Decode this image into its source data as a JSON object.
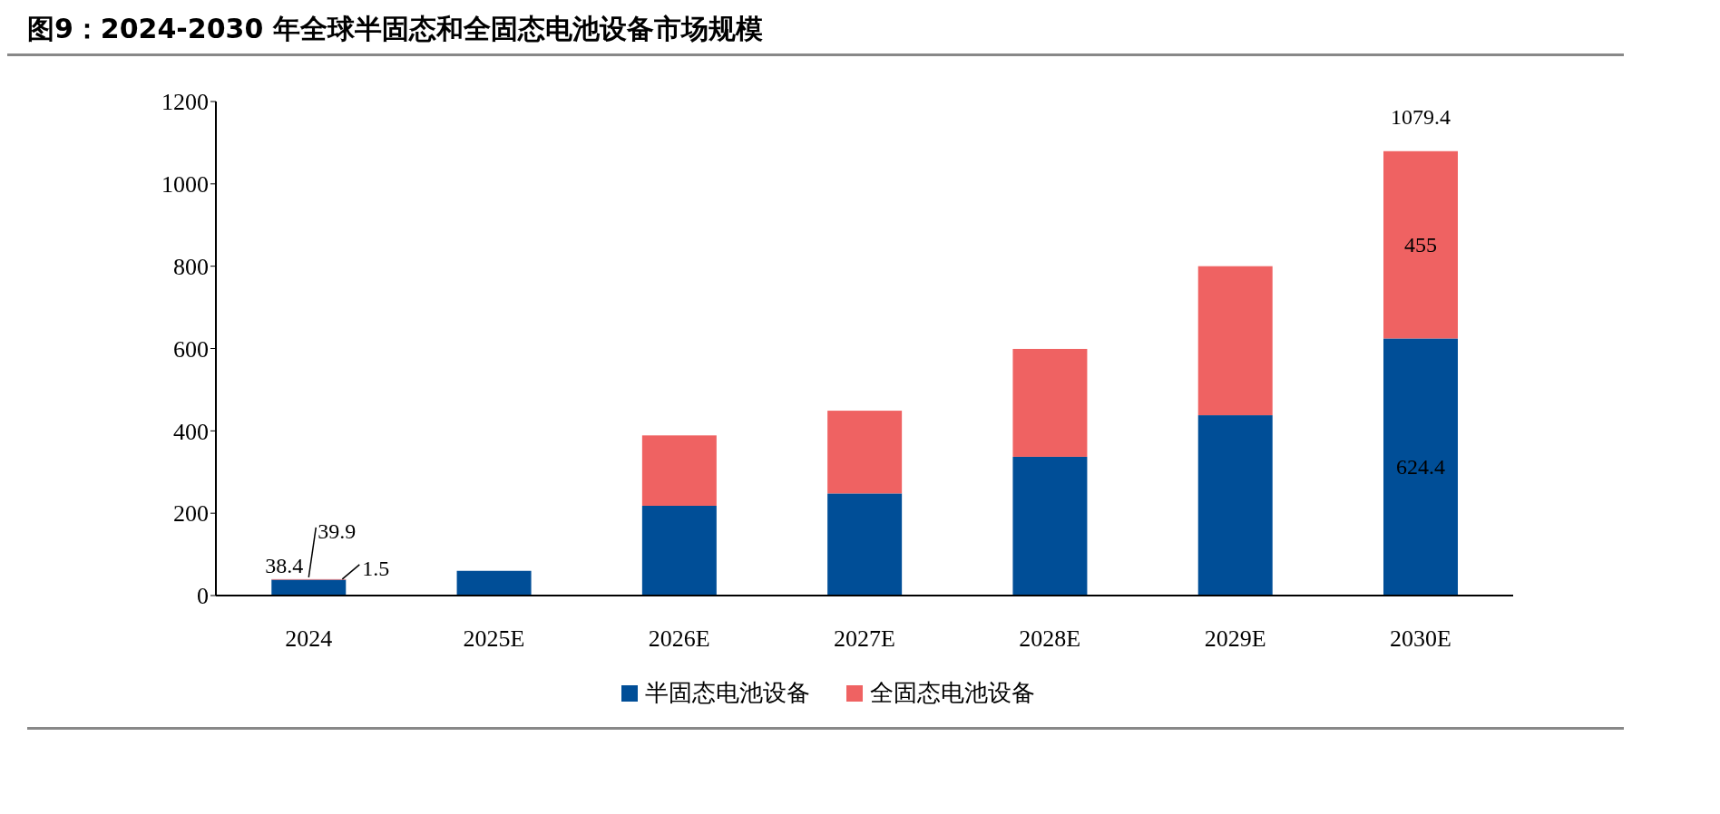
{
  "chart_data": {
    "type": "bar",
    "title": "图9：2024-2030 年全球半固态和全固态电池设备市场规模",
    "categories": [
      "2024",
      "2025E",
      "2026E",
      "2027E",
      "2028E",
      "2029E",
      "2030E"
    ],
    "stacked": true,
    "series": [
      {
        "name": "半固态电池设备",
        "color": "#004e97",
        "values": [
          38.4,
          60,
          218,
          248,
          337,
          438,
          624.4
        ],
        "value_labels": [
          "38.4",
          null,
          null,
          null,
          null,
          null,
          "624.4"
        ]
      },
      {
        "name": "全固态电池设备",
        "color": "#ef6262",
        "values": [
          1.5,
          0,
          171,
          201,
          262,
          362,
          455
        ],
        "value_labels": [
          "1.5",
          null,
          null,
          null,
          null,
          null,
          "455"
        ]
      }
    ],
    "totals": [
      "39.9",
      null,
      null,
      null,
      null,
      null,
      "1079.4"
    ],
    "ylim": [
      0,
      1200
    ],
    "yticks": [
      0,
      200,
      400,
      600,
      800,
      1000,
      1200
    ],
    "grid": false,
    "legend": "bottom"
  }
}
